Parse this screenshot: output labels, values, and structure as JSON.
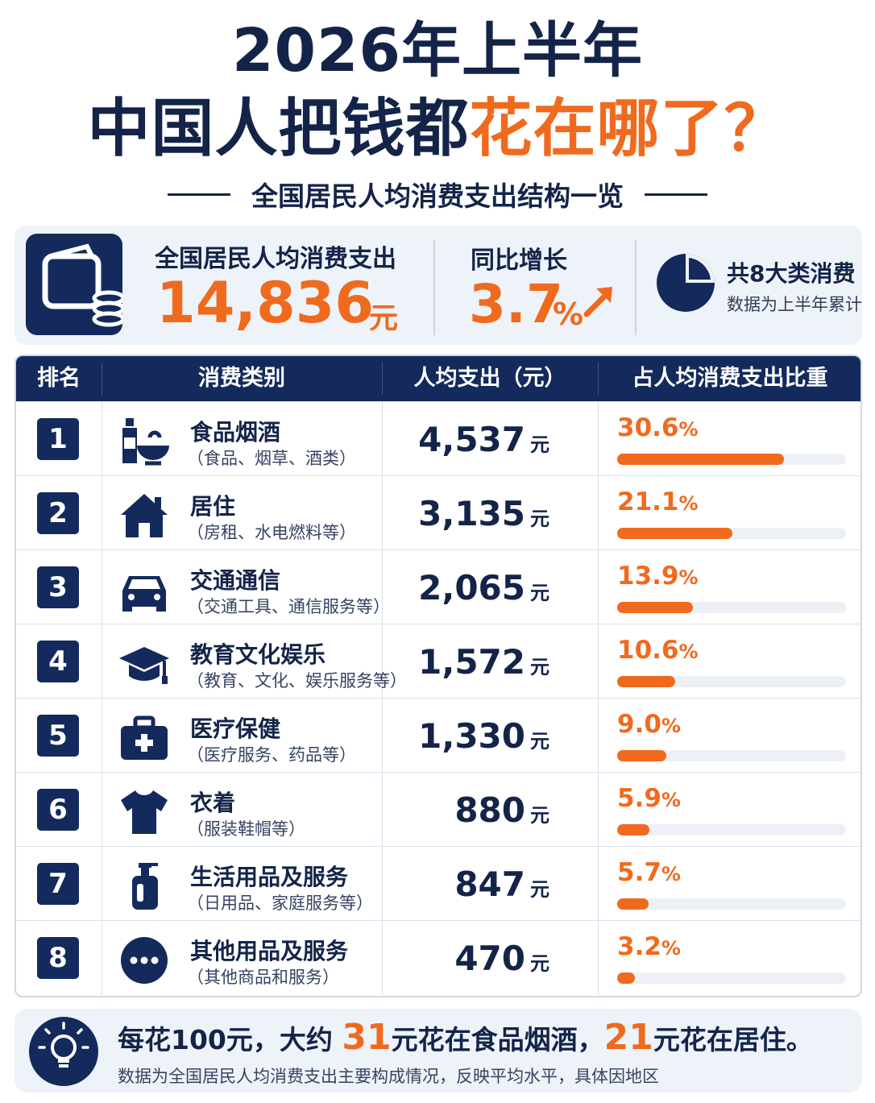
{
  "header": {
    "title_line1": "2026年上半年",
    "title_line2_prefix": "中国人把钱都",
    "title_line2_highlight": "花在哪了？",
    "subtitle": "全国居民人均消费支出结构一览"
  },
  "summary": {
    "wallet_icon": "wallet-icon",
    "total_label": "全国居民人均消费支出",
    "total_value": "14,836",
    "total_unit": "元",
    "growth_label": "同比增长",
    "growth_value": "3.7",
    "growth_unit": "%",
    "growth_icon": "up-arrow-icon",
    "category_label": "共8大类消费",
    "category_note": "数据为上半年累计",
    "pie_icon": "pie-chart-icon"
  },
  "table": {
    "headers": [
      "排名",
      "消费类别",
      "人均支出（元）",
      "占人均消费支出比重"
    ],
    "unit": "元",
    "rows": [
      {
        "rank": "1",
        "icon": "bottle-bowl-icon",
        "name": "食品烟酒",
        "desc": "（食品、烟草、酒类）",
        "amount": "4,537",
        "share": 30.6,
        "share_text": "30.6"
      },
      {
        "rank": "2",
        "icon": "house-icon",
        "name": "居住",
        "desc": "（房租、水电燃料等）",
        "amount": "3,135",
        "share": 21.1,
        "share_text": "21.1"
      },
      {
        "rank": "3",
        "icon": "car-icon",
        "name": "交通通信",
        "desc": "（交通工具、通信服务等）",
        "amount": "2,065",
        "share": 13.9,
        "share_text": "13.9"
      },
      {
        "rank": "4",
        "icon": "graduation-cap-icon",
        "name": "教育文化娱乐",
        "desc": "（教育、文化、娱乐服务等）",
        "amount": "1,572",
        "share": 10.6,
        "share_text": "10.6"
      },
      {
        "rank": "5",
        "icon": "medical-kit-icon",
        "name": "医疗保健",
        "desc": "（医疗服务、药品等）",
        "amount": "1,330",
        "share": 9.0,
        "share_text": "9.0"
      },
      {
        "rank": "6",
        "icon": "tshirt-icon",
        "name": "衣着",
        "desc": "（服装鞋帽等）",
        "amount": "880",
        "share": 5.9,
        "share_text": "5.9"
      },
      {
        "rank": "7",
        "icon": "soap-bottle-icon",
        "name": "生活用品及服务",
        "desc": "（日用品、家庭服务等）",
        "amount": "847",
        "share": 5.7,
        "share_text": "5.7"
      },
      {
        "rank": "8",
        "icon": "more-dots-icon",
        "name": "其他用品及服务",
        "desc": "（其他商品和服务）",
        "amount": "470",
        "share": 3.2,
        "share_text": "3.2"
      }
    ]
  },
  "footer": {
    "bulb_icon": "lightbulb-icon",
    "line1_a": "每花100元，大约",
    "num1": "31",
    "line1_b": "元花在食品烟酒，",
    "num2": "21",
    "line1_c": "元花在居住。",
    "line2": "数据为全国居民人均消费支出主要构成情况，反映平均水平，具体因地区"
  },
  "colors": {
    "navy": "#142a5c",
    "orange": "#f06a1e",
    "panel": "#eef3f9"
  }
}
